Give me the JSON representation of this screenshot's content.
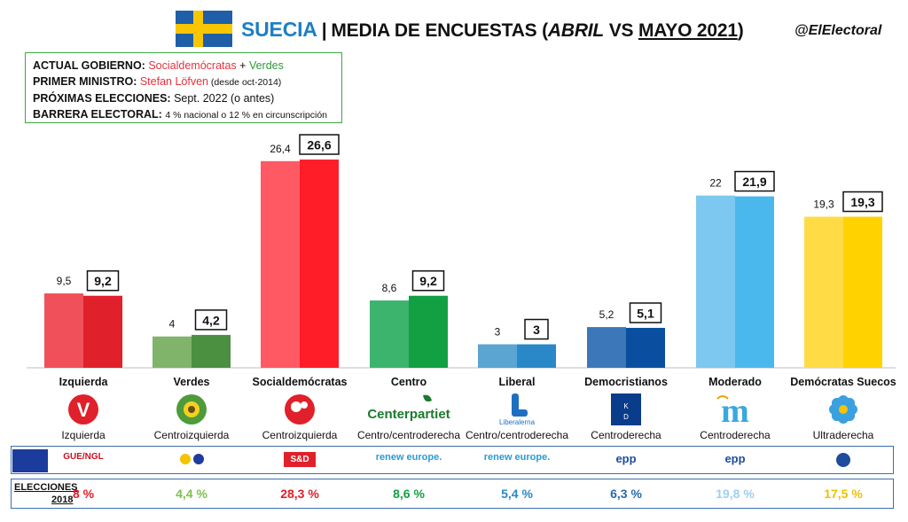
{
  "header": {
    "country": "SUECIA",
    "title_main": "MEDIA DE ENCUESTAS (",
    "month_a": "ABRIL",
    "vs": " VS ",
    "month_b": "MAYO 2021",
    "close": ")",
    "handle": "@ElElectoral"
  },
  "info": {
    "gov_label": "ACTUAL GOBIERNO:",
    "gov_party_a": "Socialdemócratas",
    "gov_plus": " + ",
    "gov_party_b": "Verdes",
    "pm_label": "PRIMER MINISTRO:",
    "pm_name": "Stefan Löfven",
    "pm_since": " (desde oct-2014)",
    "next_label": "PRÓXIMAS ELECCIONES:",
    "next_value": "Sept. 2022 (o antes)",
    "threshold_label": "BARRERA ELECTORAL:",
    "threshold_value": "4 % nacional o 12 % en circunscripción"
  },
  "chart_data": {
    "type": "bar",
    "categories": [
      "Izquierda",
      "Verdes",
      "Socialdemócratas",
      "Centro",
      "Liberal",
      "Democristianos",
      "Moderado",
      "Demócratas Suecos"
    ],
    "series": [
      {
        "name": "ABRIL",
        "values": [
          9.5,
          4,
          26.4,
          8.6,
          3,
          5.2,
          22,
          19.3
        ],
        "labels": [
          "9,5",
          "4",
          "26,4",
          "8,6",
          "3",
          "5,2",
          "22",
          "19,3"
        ]
      },
      {
        "name": "MAYO 2021",
        "values": [
          9.2,
          4.2,
          26.6,
          9.2,
          3,
          5.1,
          21.9,
          19.3
        ],
        "labels": [
          "9,2",
          "4,2",
          "26,6",
          "9,2",
          "3",
          "5,1",
          "21,9",
          "19,3"
        ]
      }
    ],
    "colors_a": [
      "#f0505a",
      "#7fb46a",
      "#ff5a64",
      "#3cb46e",
      "#5aa5d2",
      "#3c78b9",
      "#7dc8f0",
      "#ffdc46"
    ],
    "colors_b": [
      "#e0202a",
      "#4a9040",
      "#ff1e28",
      "#12a043",
      "#2a88c8",
      "#0a4ea0",
      "#4ab8ec",
      "#ffd200"
    ],
    "ylim": [
      0,
      30
    ],
    "ideology": [
      "Izquierda",
      "Centroizquierda",
      "Centroizquierda",
      "Centro/centroderecha",
      "Centro/centroderecha",
      "Centroderecha",
      "Centroderecha",
      "Ultraderecha"
    ],
    "logo_text": [
      "V",
      "",
      "",
      "Centerpartiet",
      "Liberalerna",
      "KD",
      "m",
      ""
    ],
    "logo_icons": [
      "rose-v-icon",
      "sunflower-icon",
      "rose-icon",
      "clover-icon",
      "liberal-l-icon",
      "kd-square-icon",
      "moderate-m-icon",
      "anemone-icon"
    ],
    "eu_groups": [
      "GUE/NGL",
      "",
      "S&D",
      "renew europe.",
      "renew europe.",
      "epp",
      "epp",
      ""
    ],
    "elections_label": "ELECCIONES",
    "elections_year": "2018",
    "elections_2018": [
      "8 %",
      "4,4 %",
      "28,3 %",
      "8,6 %",
      "5,4 %",
      "6,3 %",
      "19,8 %",
      "17,5 %"
    ],
    "elections_colors": [
      "#e0202a",
      "#7fc04a",
      "#e0202a",
      "#12a043",
      "#2a88c8",
      "#2a6ab0",
      "#9ed0f0",
      "#f0c000"
    ]
  }
}
